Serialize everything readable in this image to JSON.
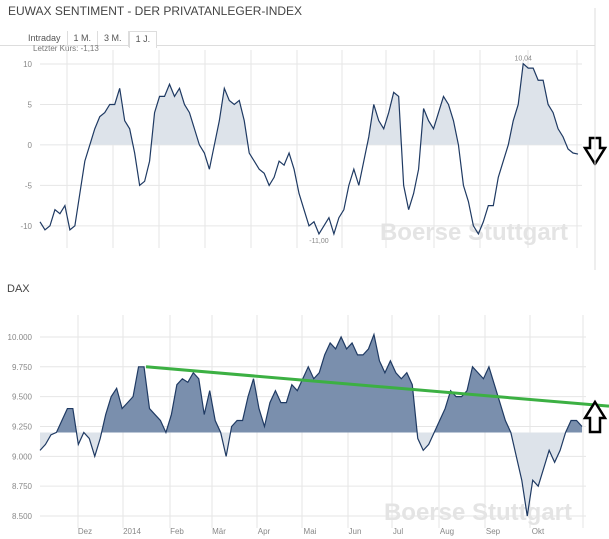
{
  "header": {
    "title": "EUWAX SENTIMENT - DER PRIVATANLEGER-INDEX"
  },
  "tabs": [
    {
      "label": "Intraday"
    },
    {
      "label": "1 M."
    },
    {
      "label": "3 M."
    },
    {
      "label": "1 J.",
      "active": true
    }
  ],
  "last_price": "Letzter Kurs: -1,13",
  "watermark": "Boerse Stuttgart",
  "colors": {
    "line": "#1f3a63",
    "fill_light": "#dde3ea",
    "fill_dark": "#7a8fad",
    "trend": "#3cb043"
  },
  "chart_data": [
    {
      "type": "area",
      "title": "",
      "baseline": 0,
      "ylim": [
        -12,
        10.5
      ],
      "yticks": [
        "10",
        "5",
        "0",
        "-5",
        "-10"
      ],
      "ytick_values": [
        10,
        5,
        0,
        -5,
        -10
      ],
      "annotations": [
        {
          "text": "10,04",
          "value": 10.04
        },
        {
          "text": "-11,00",
          "value": -11
        }
      ],
      "values": [
        -9.5,
        -10.5,
        -10,
        -8,
        -8.5,
        -7.5,
        -10.5,
        -10,
        -6,
        -2,
        0,
        2,
        3.5,
        4,
        5,
        5,
        7,
        3,
        2,
        -1,
        -5,
        -4.5,
        -2,
        4,
        6,
        6,
        7.5,
        6,
        7,
        5,
        4,
        2,
        0,
        -1,
        -3,
        0,
        3,
        7,
        5.5,
        5,
        5.5,
        3,
        -1,
        -2,
        -3,
        -3.5,
        -5,
        -4,
        -2,
        -2.5,
        -1,
        -3,
        -6,
        -8,
        -10,
        -9.5,
        -11,
        -10,
        -9,
        -11,
        -9,
        -8,
        -5,
        -3,
        -5,
        -2,
        1,
        5,
        3,
        2,
        4,
        6.5,
        6,
        -5,
        -8,
        -6,
        -3,
        4.5,
        3,
        2,
        4,
        6,
        5,
        3,
        0,
        -5,
        -7,
        -10,
        -11,
        -9.5,
        -7.5,
        -7.5,
        -4,
        -2,
        0,
        3,
        5,
        10.04,
        9.5,
        9.5,
        8,
        8,
        5,
        4,
        2,
        1,
        -0.5,
        -1,
        -1.13
      ]
    },
    {
      "type": "area",
      "title": "DAX",
      "baseline": 9200,
      "ylim": [
        8450,
        10100
      ],
      "yticks": [
        "10.000",
        "9.750",
        "9.500",
        "9.250",
        "9.000",
        "8.750",
        "8.500"
      ],
      "ytick_values": [
        10000,
        9750,
        9500,
        9250,
        9000,
        8750,
        8500
      ],
      "xticks": [
        "Dez",
        "2014",
        "Feb",
        "Mär",
        "Apr",
        "Mai",
        "Jun",
        "Jul",
        "Aug",
        "Sep",
        "Okt"
      ],
      "trendline": {
        "from": 9750,
        "to": 9420
      },
      "values": [
        9050,
        9100,
        9180,
        9200,
        9300,
        9400,
        9400,
        9100,
        9200,
        9150,
        9000,
        9150,
        9350,
        9500,
        9570,
        9400,
        9450,
        9500,
        9750,
        9750,
        9400,
        9350,
        9300,
        9200,
        9350,
        9600,
        9650,
        9620,
        9700,
        9650,
        9350,
        9550,
        9300,
        9200,
        9000,
        9250,
        9300,
        9300,
        9500,
        9650,
        9400,
        9250,
        9450,
        9550,
        9450,
        9450,
        9600,
        9550,
        9650,
        9750,
        9650,
        9700,
        9850,
        9950,
        9900,
        10000,
        9900,
        9950,
        9850,
        9850,
        9900,
        10020,
        9800,
        9700,
        9800,
        9700,
        9650,
        9700,
        9600,
        9150,
        9050,
        9100,
        9200,
        9300,
        9400,
        9550,
        9500,
        9500,
        9550,
        9750,
        9700,
        9650,
        9750,
        9600,
        9450,
        9300,
        9200,
        9000,
        8800,
        8500,
        8800,
        8750,
        8900,
        9050,
        8950,
        9050,
        9200,
        9300,
        9300,
        9250
      ]
    }
  ]
}
